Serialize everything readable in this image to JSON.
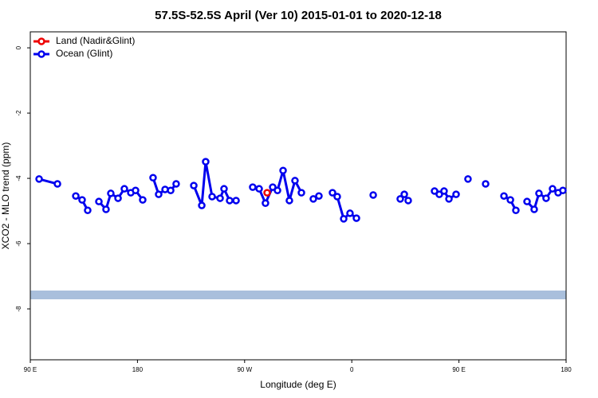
{
  "chart_data": {
    "type": "line",
    "title": "57.5S-52.5S April (Ver 10)   2015-01-01 to 2020-12-18",
    "x_label": "Longitude (deg E)",
    "y_label": "XCO2 - MLO trend (ppm)",
    "xlim": [
      90,
      540
    ],
    "xticks": [
      {
        "value": 90,
        "label": "90 E"
      },
      180,
      {
        "value": 270,
        "label": "90 W"
      },
      {
        "value": 360,
        "label": "0"
      },
      {
        "value": 450,
        "label": "90 E"
      },
      {
        "value": 540,
        "label": "180"
      }
    ],
    "ylim": [
      -9.56,
      0.49
    ],
    "yticks": [
      0,
      -2,
      -4,
      -6,
      -8
    ],
    "legend": "top-left",
    "series": [
      {
        "name": "Land (Nadir&Glint)",
        "color": "#ee0000",
        "x": [
          288.9
        ],
        "values": [
          -4.44
        ]
      },
      {
        "name": "Ocean (Glint)",
        "color": "#0000ee",
        "x": [
          97.4,
          112.8,
          null,
          128.2,
          133.5,
          138.2,
          null,
          147.6,
          153.6,
          157.6,
          163.7,
          169.0,
          174.4,
          178.4,
          184.4,
          null,
          193.1,
          197.8,
          203.2,
          207.9,
          212.5,
          null,
          227.3,
          234.0,
          237.3,
          242.7,
          249.4,
          252.7,
          257.4,
          262.8,
          null,
          276.8,
          282.2,
          287.5,
          293.6,
          297.6,
          302.3,
          307.6,
          312.3,
          317.7,
          null,
          327.7,
          332.4,
          null,
          343.8,
          347.8,
          353.2,
          358.5,
          363.9,
          null,
          378.0,
          null,
          400.7,
          404.1,
          407.4,
          null,
          429.5,
          433.5,
          437.5,
          441.6,
          447.6,
          null,
          457.6,
          null,
          472.4,
          null,
          487.8,
          493.2,
          497.8,
          null,
          507.2,
          513.2,
          517.2,
          523.2,
          528.6,
          533.3,
          537.3
        ],
        "values": [
          -4.02,
          -4.17,
          null,
          -4.54,
          -4.66,
          -4.98,
          null,
          -4.71,
          -4.95,
          -4.46,
          -4.61,
          -4.32,
          -4.44,
          -4.37,
          -4.66,
          null,
          -3.98,
          -4.49,
          -4.34,
          -4.37,
          -4.17,
          null,
          -4.22,
          -4.83,
          -3.49,
          -4.56,
          -4.61,
          -4.32,
          -4.68,
          -4.68,
          null,
          -4.27,
          -4.32,
          -4.76,
          -4.27,
          -4.37,
          -3.76,
          -4.68,
          -4.07,
          -4.44,
          null,
          -4.63,
          -4.54,
          null,
          -4.44,
          -4.56,
          -5.24,
          -5.07,
          -5.22,
          null,
          -4.51,
          null,
          -4.63,
          -4.49,
          -4.68,
          null,
          -4.39,
          -4.49,
          -4.39,
          -4.63,
          -4.49,
          null,
          -4.02,
          null,
          -4.17,
          null,
          -4.54,
          -4.66,
          -4.98,
          null,
          -4.71,
          -4.95,
          -4.46,
          -4.61,
          -4.32,
          -4.44,
          -4.37
        ]
      }
    ]
  }
}
